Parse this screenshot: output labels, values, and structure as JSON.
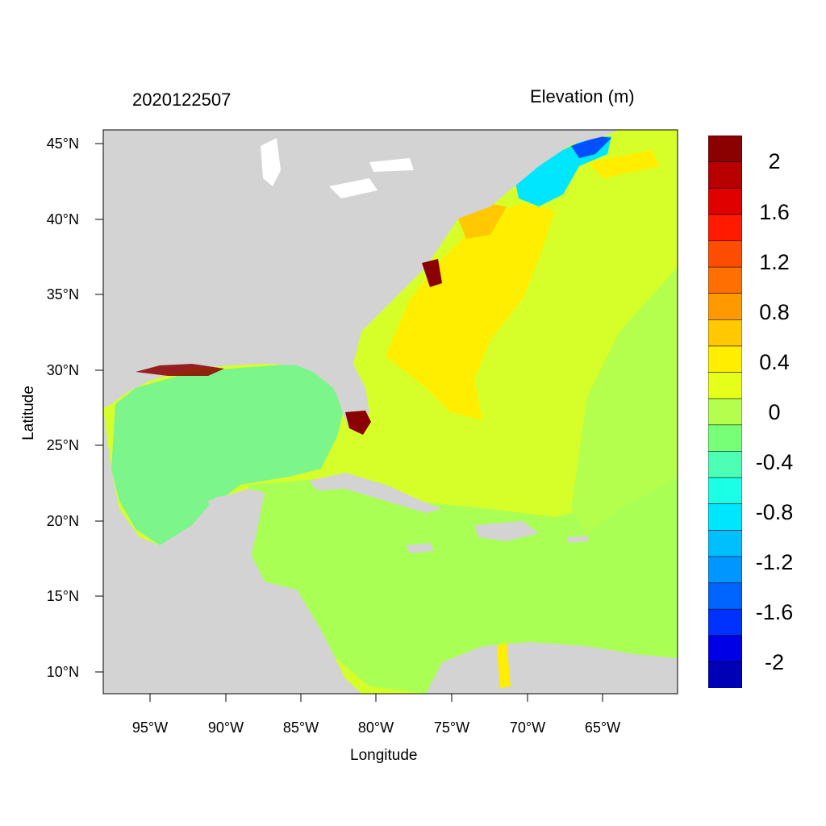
{
  "title": {
    "left": "2020122507",
    "right": "Elevation (m)"
  },
  "axes": {
    "xlabel": "Longitude",
    "ylabel": "Latitude",
    "x_ticks": [
      "95°W",
      "90°W",
      "85°W",
      "80°W",
      "75°W",
      "70°W",
      "65°W"
    ],
    "y_ticks": [
      "45°N",
      "40°N",
      "35°N",
      "30°N",
      "25°N",
      "20°N",
      "15°N",
      "10°N"
    ]
  },
  "colorbar": {
    "labels": [
      "2",
      "1.6",
      "1.2",
      "0.8",
      "0.4",
      "0",
      "-0.4",
      "-0.8",
      "-1.2",
      "-1.6",
      "-2"
    ],
    "colors": [
      "#8b0000",
      "#b80000",
      "#e00000",
      "#ff1a00",
      "#ff4d00",
      "#ff7000",
      "#ff9900",
      "#ffc800",
      "#ffee00",
      "#e6ff1a",
      "#b4ff4d",
      "#78ff78",
      "#4dffb4",
      "#1affe6",
      "#00e6ff",
      "#00bfff",
      "#0096ff",
      "#0064ff",
      "#0032ff",
      "#0000e6",
      "#0000b4"
    ]
  },
  "colors": {
    "land": "#d3d3d3",
    "ocean_gulf": "#7cf58a",
    "ocean_caribbean": "#aaff55",
    "ocean_atlantic": "#d6ff2a",
    "ocean_high": "#ffee00",
    "ocean_mid": "#ffc800",
    "ocean_low": "#00c8ff",
    "ocean_very_low": "#0050ff",
    "surge_extreme": "#8b0000",
    "lakes": "#ffffff"
  }
}
